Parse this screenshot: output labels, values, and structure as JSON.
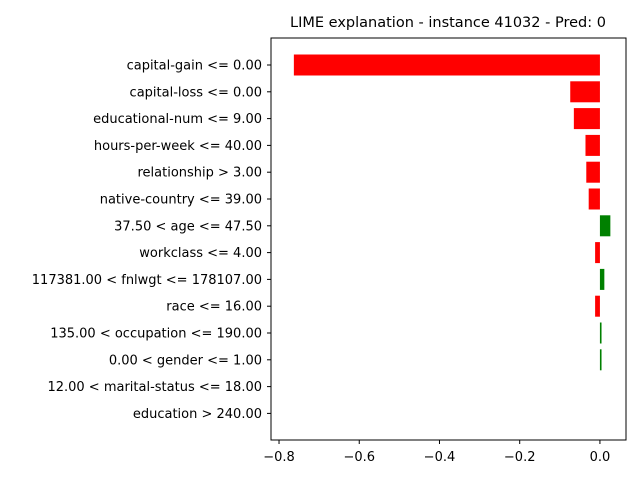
{
  "chart_data": {
    "type": "bar",
    "orientation": "horizontal",
    "title": "LIME explanation - instance 41032 - Pred: 0",
    "xlabel": "",
    "ylabel": "",
    "xlim": [
      -0.82,
      0.065
    ],
    "x_ticks": [
      -0.8,
      -0.6,
      -0.4,
      -0.2,
      0.0
    ],
    "x_tick_labels": [
      "−0.8",
      "−0.6",
      "−0.4",
      "−0.2",
      "0.0"
    ],
    "grid": false,
    "colors": {
      "negative": "#ff0000",
      "positive": "#008000"
    },
    "categories": [
      "capital-gain <= 0.00",
      "capital-loss <= 0.00",
      "educational-num <= 9.00",
      "hours-per-week <= 40.00",
      "relationship > 3.00",
      "native-country <= 39.00",
      "37.50 < age <= 47.50",
      "workclass <= 4.00",
      "117381.00 < fnlwgt <= 178107.00",
      "race <= 16.00",
      "135.00 < occupation <= 190.00",
      "0.00 < gender <= 1.00",
      "12.00 < marital-status <= 18.00",
      "education > 240.00"
    ],
    "values": [
      -0.763,
      -0.074,
      -0.065,
      -0.036,
      -0.034,
      -0.028,
      0.026,
      -0.012,
      0.011,
      -0.012,
      0.004,
      0.004,
      0.0,
      0.0
    ]
  }
}
